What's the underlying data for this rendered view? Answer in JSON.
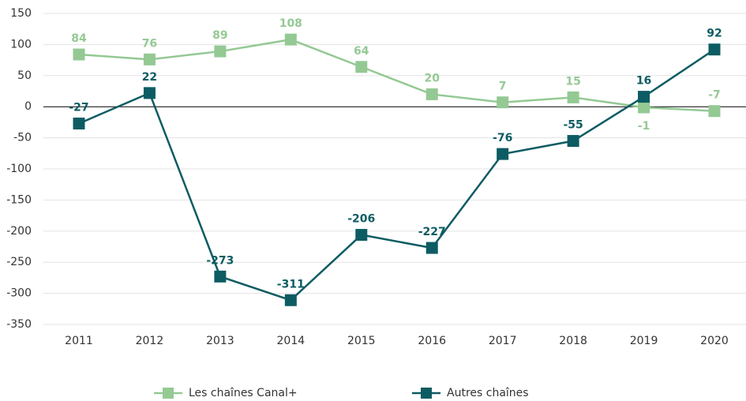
{
  "chart_data": {
    "type": "line",
    "categories": [
      "2011",
      "2012",
      "2013",
      "2014",
      "2015",
      "2016",
      "2017",
      "2018",
      "2019",
      "2020"
    ],
    "series": [
      {
        "name": "Les chaînes Canal+",
        "color": "#94c994",
        "values": [
          84,
          76,
          89,
          108,
          64,
          20,
          7,
          15,
          -1,
          -7
        ]
      },
      {
        "name": "Autres chaînes",
        "color": "#0d5c63",
        "values": [
          -27,
          22,
          -273,
          -311,
          -206,
          -227,
          -76,
          -55,
          16,
          92
        ]
      }
    ],
    "ylim": [
      -350,
      150
    ],
    "yticks": [
      150,
      100,
      50,
      0,
      -50,
      -100,
      -150,
      -200,
      -250,
      -300,
      -350
    ],
    "grid": true,
    "legend": "bottom"
  }
}
